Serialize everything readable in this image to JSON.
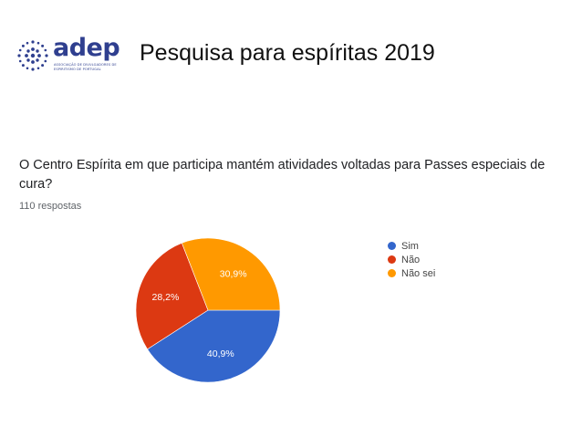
{
  "header": {
    "logo_text": "adep",
    "logo_tagline": "ASSOCIAÇÃO DE DIVULGADORES DE ESPIRITISMO DE PORTUGAL",
    "title": "Pesquisa para espíritas  2019"
  },
  "survey": {
    "question": "O Centro Espírita em que participa mantém atividades voltadas para Passes especiais de cura?",
    "responses": "110 respostas"
  },
  "chart_data": {
    "type": "pie",
    "title": "O Centro Espírita em que participa mantém atividades voltadas para Passes especiais de cura?",
    "categories": [
      "Sim",
      "Não",
      "Não sei"
    ],
    "values": [
      40.9,
      28.2,
      30.9
    ],
    "labels": [
      "40,9%",
      "28,2%",
      "30,9%"
    ],
    "colors": [
      "#3366cc",
      "#dc3912",
      "#ff9900"
    ],
    "legend_position": "right",
    "start": "bottom-right, clockwise Sim → Não → Não sei"
  }
}
